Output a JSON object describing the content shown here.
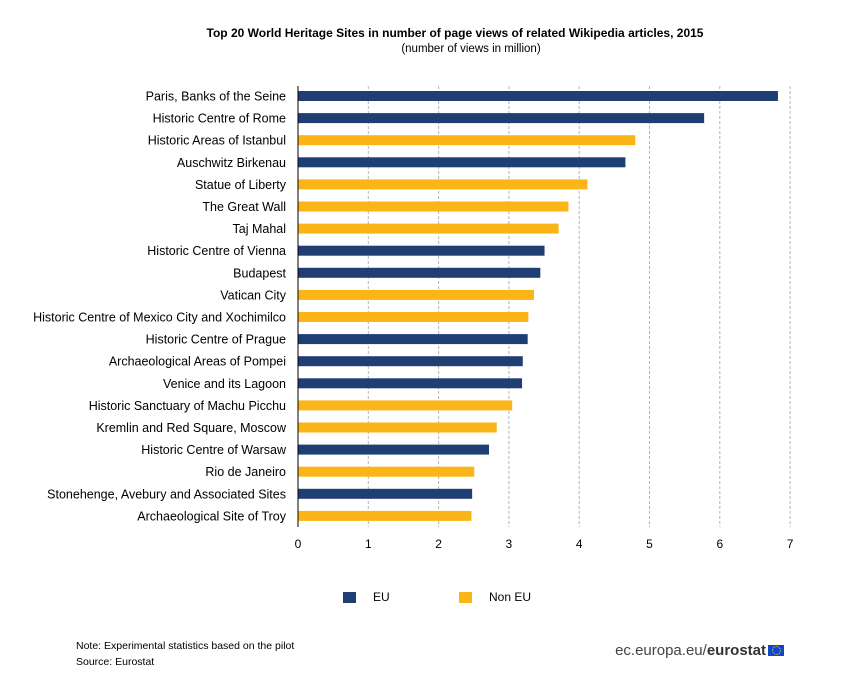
{
  "chart_data": {
    "type": "bar",
    "orientation": "horizontal",
    "title": "Top 20 World Heritage Sites in number of page views of related Wikipedia articles, 2015",
    "subtitle": "(number of views in million)",
    "xlim": [
      0,
      7
    ],
    "xticks": [
      "0",
      "1",
      "2",
      "3",
      "4",
      "5",
      "6",
      "7"
    ],
    "grid": "vertical dashed",
    "legend_position": "bottom",
    "colors": {
      "EU": "#1f3f74",
      "Non EU": "#fbb517"
    },
    "legend": [
      {
        "name": "EU",
        "color": "#1f3f74"
      },
      {
        "name": "Non EU",
        "color": "#fbb517"
      }
    ],
    "categories": [
      "Paris, Banks of the Seine",
      "Historic Centre of Rome",
      "Historic Areas of Istanbul",
      "Auschwitz Birkenau",
      "Statue of Liberty",
      "The Great Wall",
      "Taj Mahal",
      "Historic Centre of Vienna",
      "Budapest",
      "Vatican City",
      "Historic Centre of Mexico City and Xochimilco",
      "Historic Centre of Prague",
      "Archaeological Areas of Pompei",
      "Venice and its Lagoon",
      "Historic Sanctuary of Machu Picchu",
      "Kremlin and Red Square, Moscow",
      "Historic Centre of Warsaw",
      "Rio de Janeiro",
      "Stonehenge, Avebury and Associated Sites",
      "Archaeological Site of Troy"
    ],
    "values": [
      6.82,
      5.77,
      4.79,
      4.65,
      4.11,
      3.84,
      3.7,
      3.5,
      3.44,
      3.35,
      3.27,
      3.26,
      3.19,
      3.18,
      3.04,
      2.82,
      2.71,
      2.5,
      2.47,
      2.46
    ],
    "groups": [
      "EU",
      "EU",
      "Non EU",
      "EU",
      "Non EU",
      "Non EU",
      "Non EU",
      "EU",
      "EU",
      "Non EU",
      "Non EU",
      "EU",
      "EU",
      "EU",
      "Non EU",
      "Non EU",
      "EU",
      "Non EU",
      "EU",
      "Non EU"
    ]
  },
  "footer": {
    "note": "Note: Experimental statistics based on the pilot",
    "source": "Source: Eurostat",
    "brand_prefix": "ec.europa.eu/",
    "brand_strong": "eurostat"
  }
}
